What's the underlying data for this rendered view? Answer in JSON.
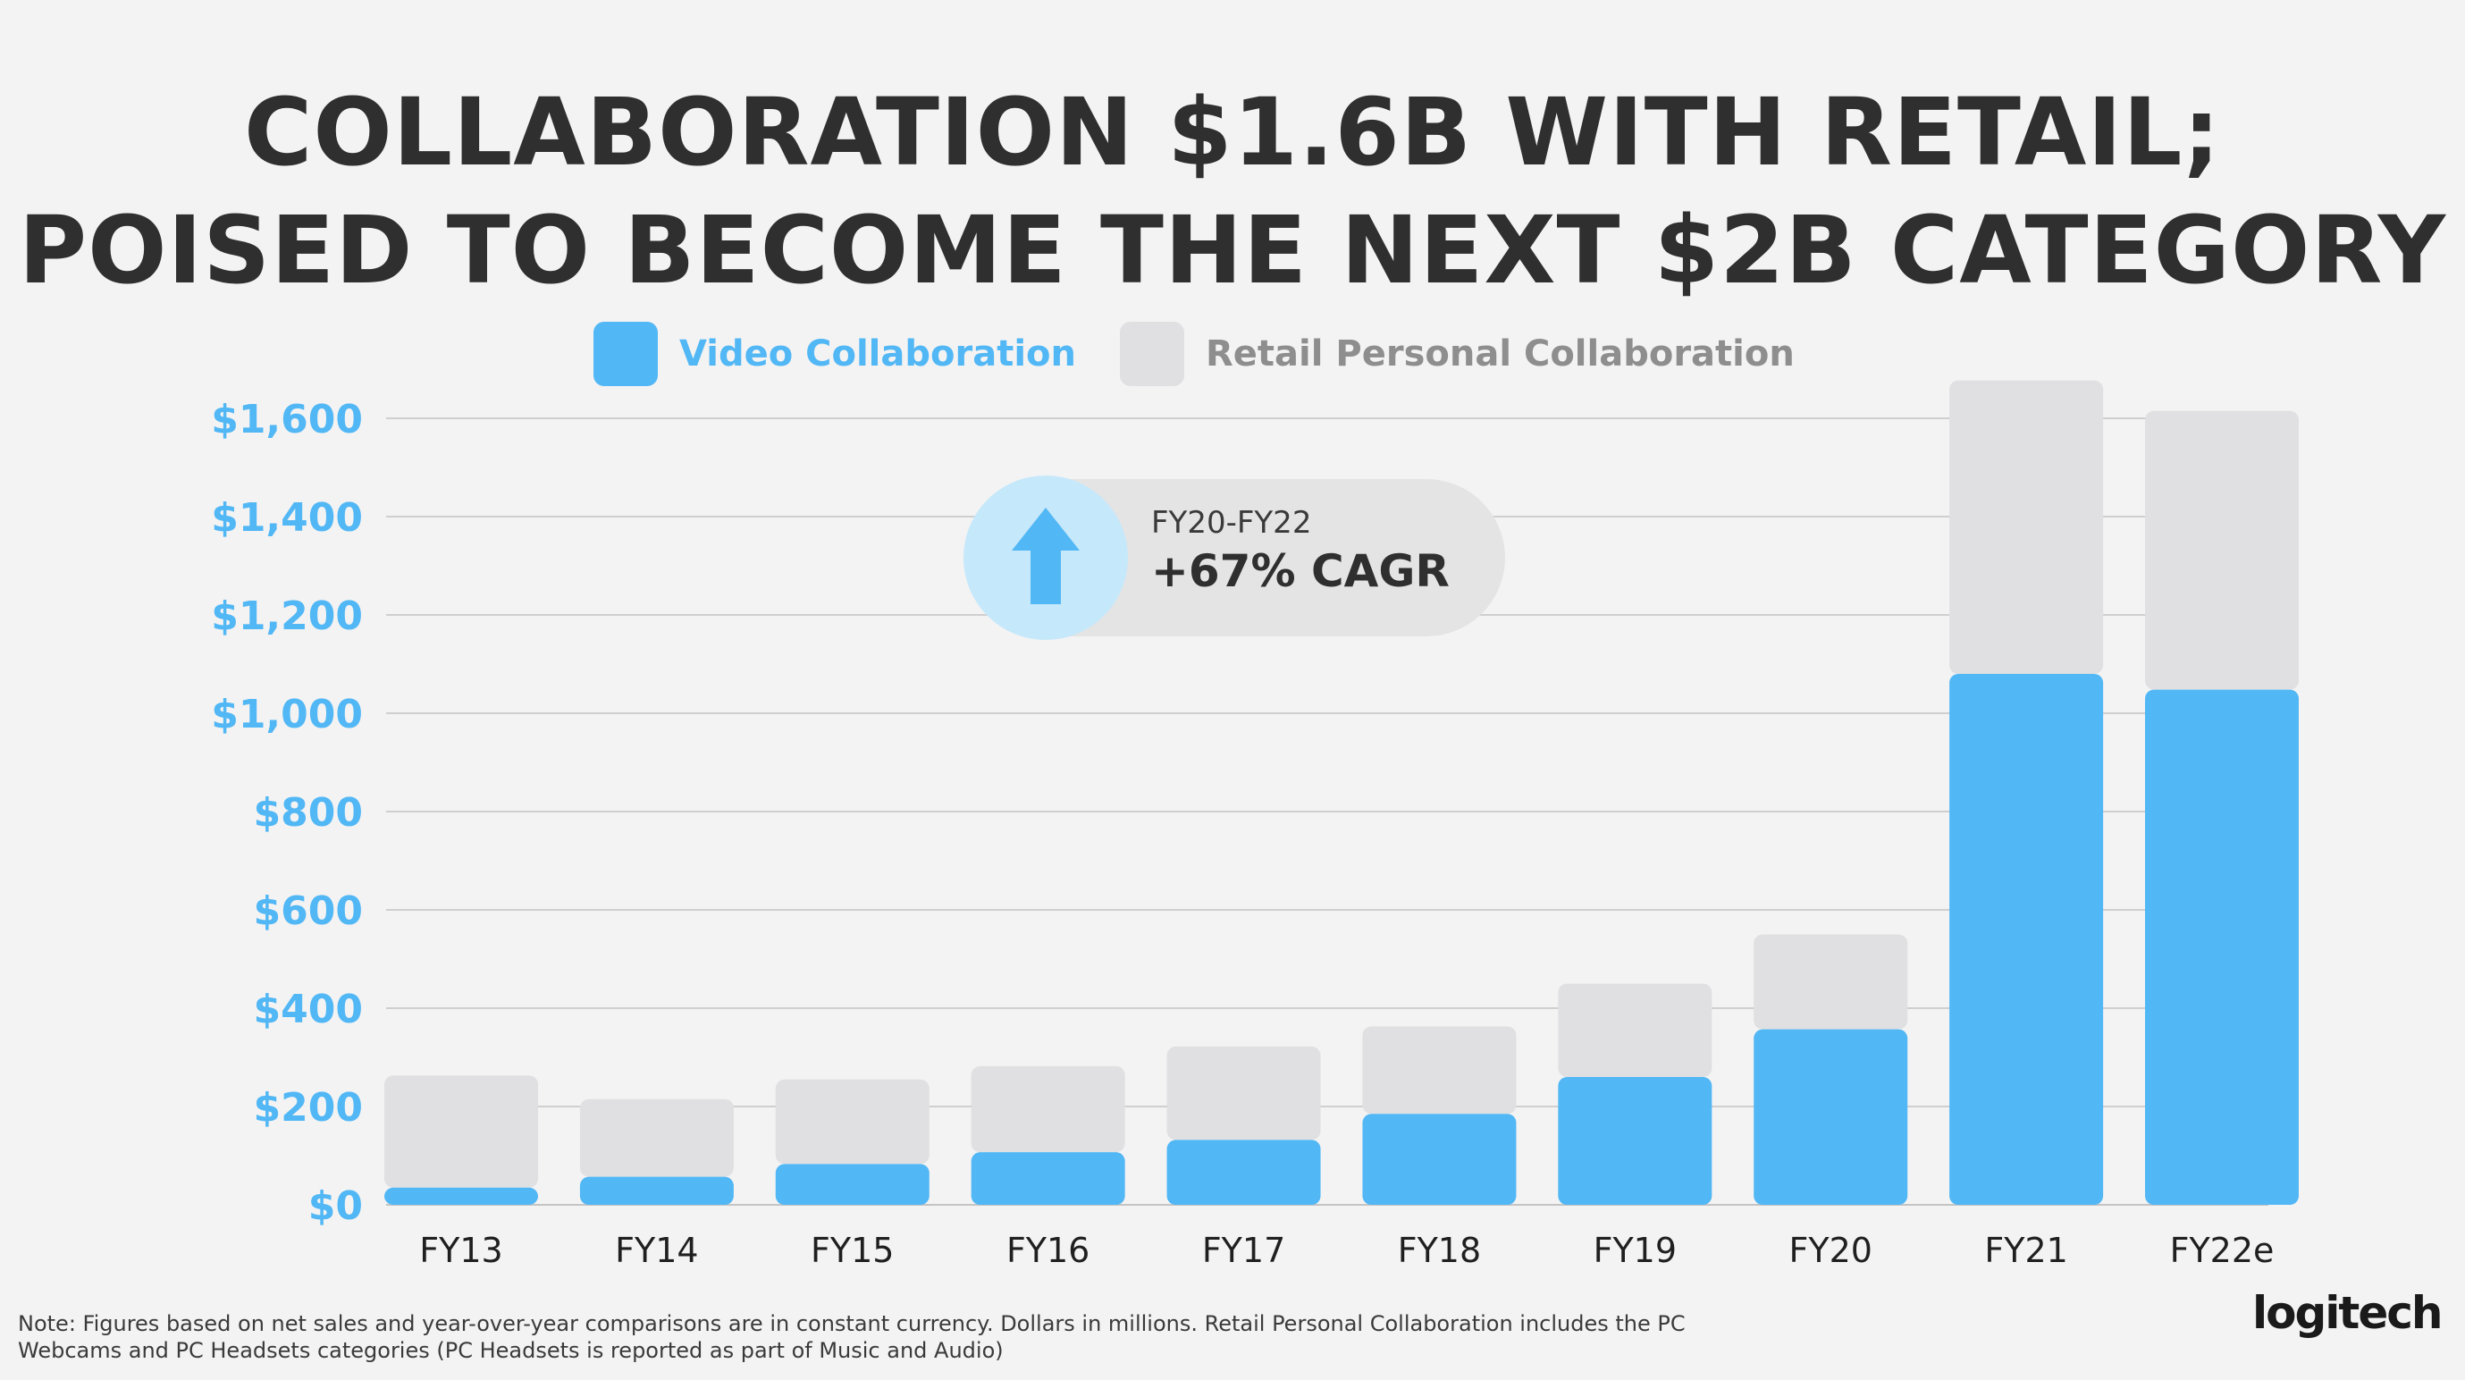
{
  "title_line1": "COLLABORATION $1.6B WITH RETAIL;",
  "title_line2": "POISED TO BECOME THE NEXT $2B CATEGORY",
  "legend": {
    "video": "Video Collaboration",
    "retail": "Retail Personal Collaboration"
  },
  "callout": {
    "period": "FY20-FY22",
    "value": "+67% CAGR",
    "icon": "up-arrow-icon"
  },
  "note": "Note: Figures based on net sales and year-over-year comparisons are in constant currency. Dollars in millions. Retail Personal Collaboration includes the PC Webcams and PC Headsets categories (PC Headsets is reported as part of Music and Audio)",
  "logo": "logitech",
  "colors": {
    "video": "#52b7f5",
    "retail": "#e0e0e2",
    "ytick": "#52b7f5",
    "title": "#2f2f2f"
  },
  "chart_data": {
    "type": "bar",
    "stacked": true,
    "categories": [
      "FY13",
      "FY14",
      "FY15",
      "FY16",
      "FY17",
      "FY18",
      "FY19",
      "FY20",
      "FY21",
      "FY22e"
    ],
    "series": [
      {
        "name": "Video Collaboration",
        "values": [
          35,
          57,
          83,
          107,
          132,
          185,
          260,
          357,
          1080,
          1048
        ]
      },
      {
        "name": "Retail Personal Collaboration",
        "values": [
          228,
          158,
          172,
          175,
          190,
          178,
          190,
          193,
          597,
          567
        ]
      }
    ],
    "yticks": [
      "$0",
      "$200",
      "$400",
      "$600",
      "$800",
      "$1,000",
      "$1,200",
      "$1,400",
      "$1,600"
    ],
    "ylim": [
      0,
      1600
    ],
    "grid": true,
    "legend_position": "top"
  }
}
